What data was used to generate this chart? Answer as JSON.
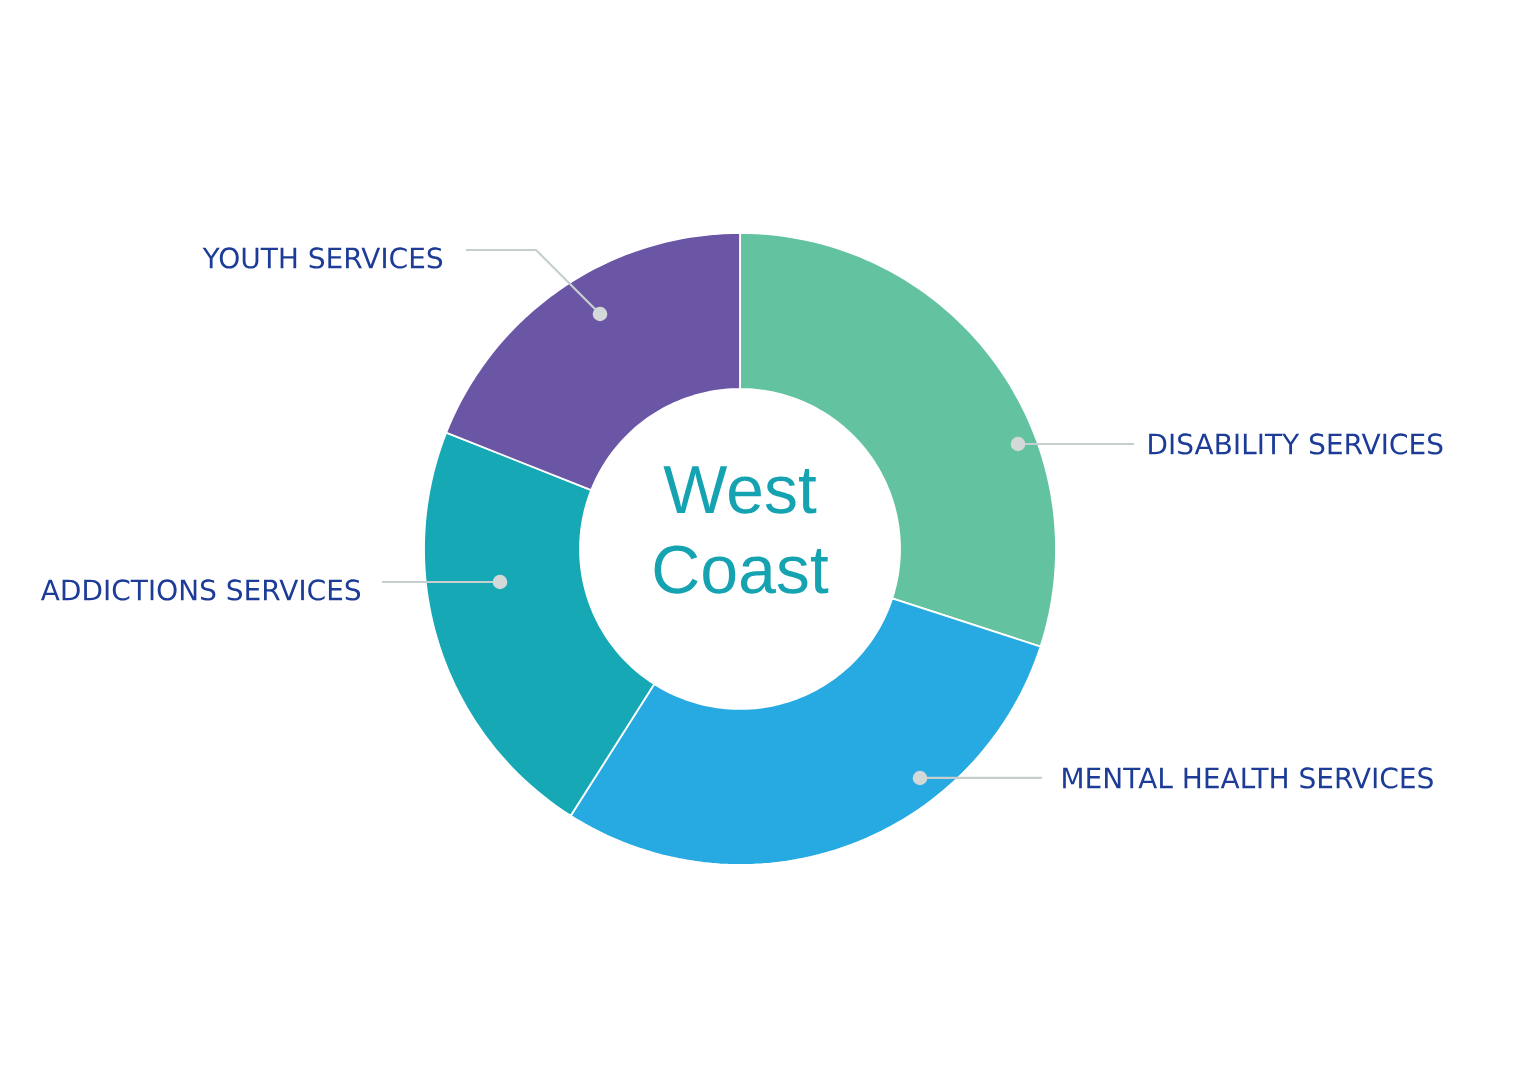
{
  "chart_data": {
    "type": "donut",
    "title": "West Coast",
    "categories": [
      "DISABILITY SERVICES",
      "MENTAL HEALTH SERVICES",
      "ADDICTIONS SERVICES",
      "YOUTH SERVICES"
    ],
    "values": [
      30,
      29,
      22,
      19
    ],
    "colors": [
      "#63c3a1",
      "#27aae1",
      "#16a9b5",
      "#6b55a5"
    ]
  }
}
